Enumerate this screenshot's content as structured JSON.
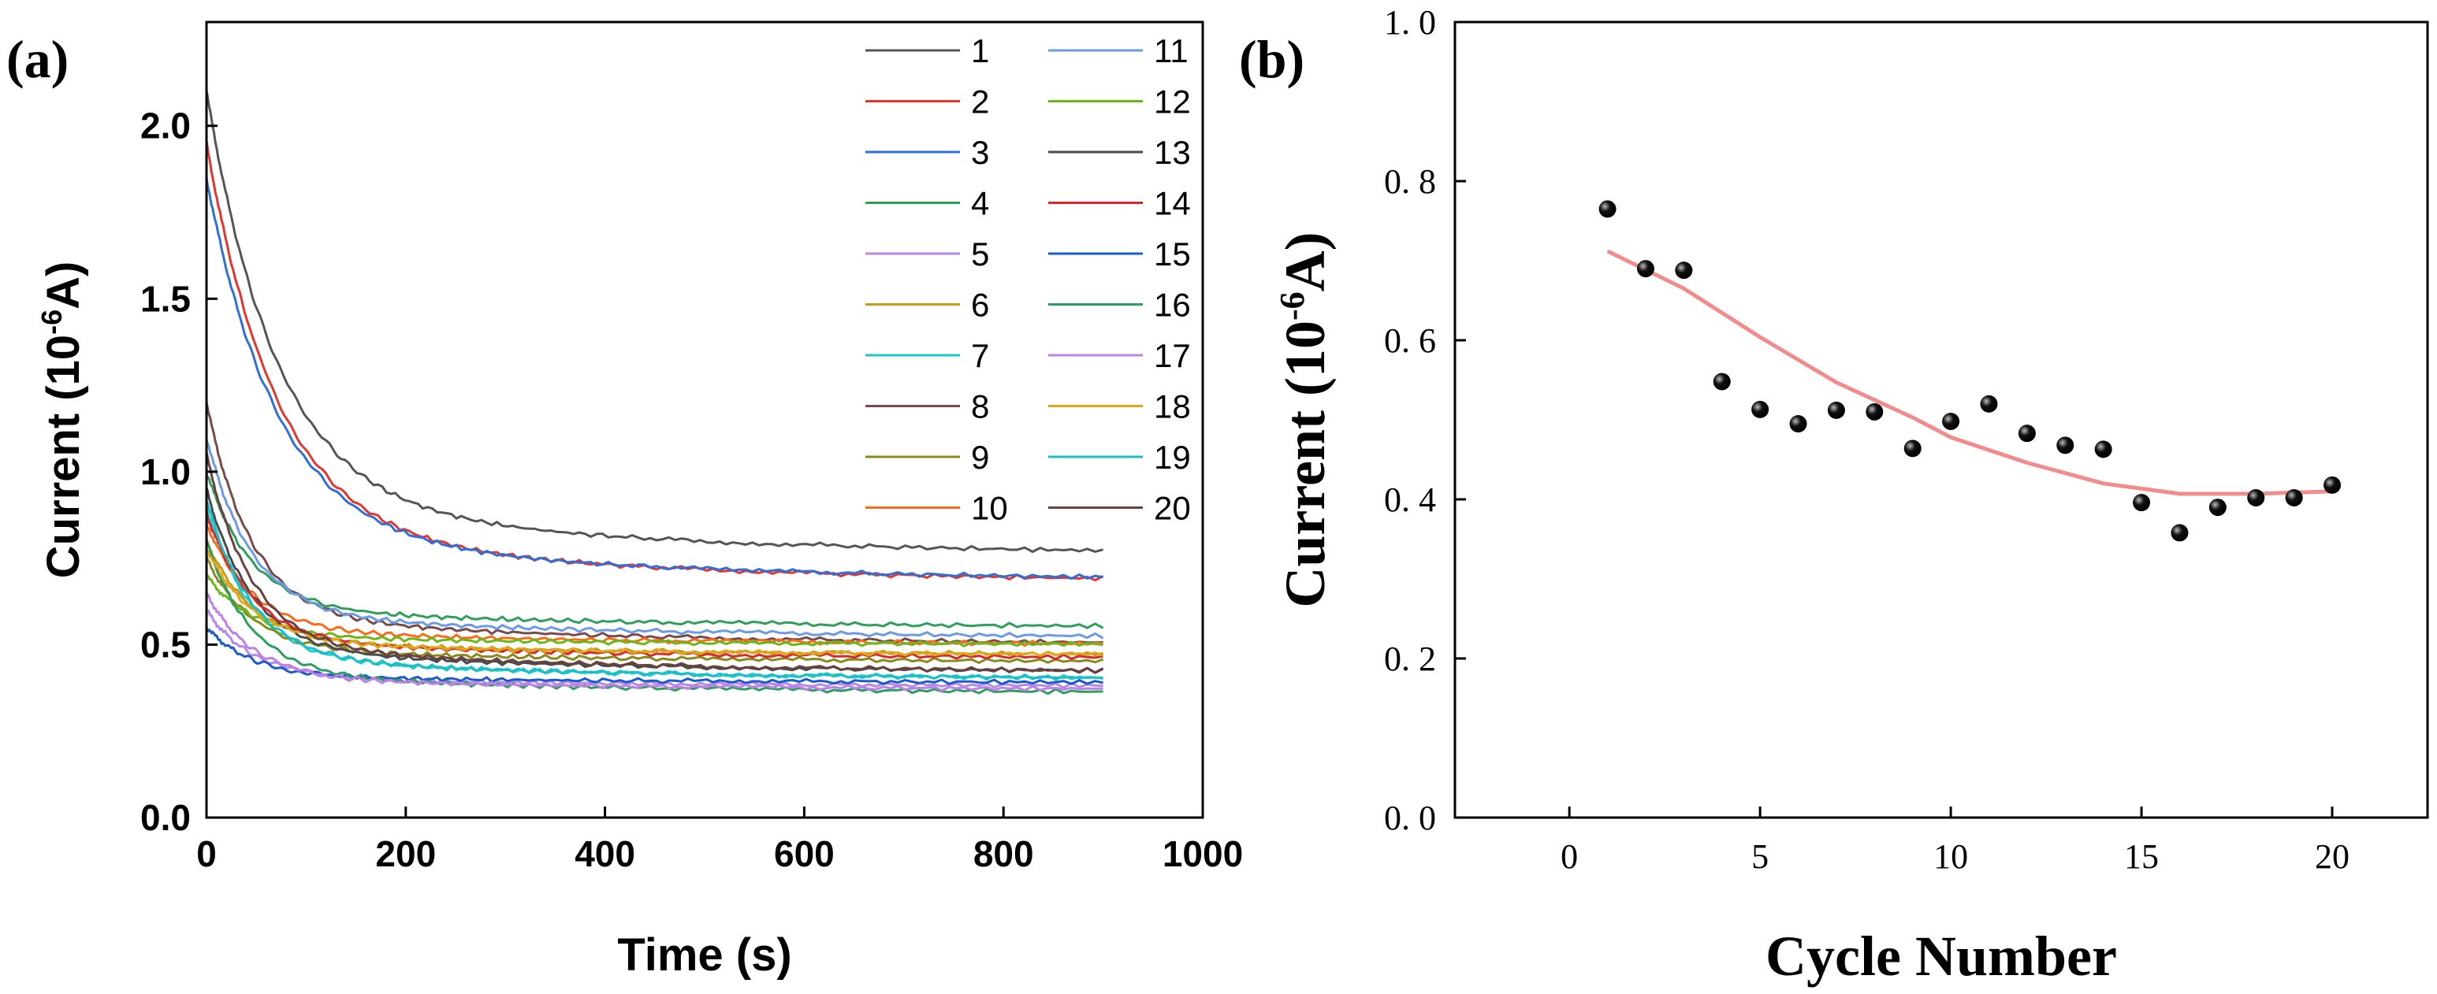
{
  "panel_a_label": "(a)",
  "panel_b_label": "(b)",
  "chart_data": [
    {
      "type": "line",
      "xlabel": "Time (s)",
      "ylabel_parts": [
        "Current (10",
        "-6",
        "A)"
      ],
      "xlim": [
        0,
        1000
      ],
      "ylim": [
        0.0,
        2.3
      ],
      "xticks": [
        0,
        200,
        400,
        600,
        800,
        1000
      ],
      "xtick_labels": [
        "0",
        "200",
        "400",
        "600",
        "800",
        "1000"
      ],
      "yticks": [
        0.0,
        0.5,
        1.0,
        1.5,
        2.0
      ],
      "ytick_labels": [
        "0.0",
        "0.5",
        "1.0",
        "1.5",
        "2.0"
      ],
      "legend_position": "top-right",
      "series": [
        {
          "name": "1",
          "color": "#555555",
          "start": 2.1,
          "end": 0.76
        },
        {
          "name": "2",
          "color": "#e8342c",
          "start": 1.95,
          "end": 0.68
        },
        {
          "name": "3",
          "color": "#2e6fd8",
          "start": 1.85,
          "end": 0.685
        },
        {
          "name": "4",
          "color": "#2ea05a",
          "start": 1.0,
          "end": 0.55
        },
        {
          "name": "5",
          "color": "#b58ae6",
          "start": 0.6,
          "end": 0.38
        },
        {
          "name": "6",
          "color": "#c99a18",
          "start": 0.8,
          "end": 0.47
        },
        {
          "name": "7",
          "color": "#1ec9c9",
          "start": 0.9,
          "end": 0.4
        },
        {
          "name": "8",
          "color": "#7a4a4a",
          "start": 1.2,
          "end": 0.5
        },
        {
          "name": "9",
          "color": "#8a8a1a",
          "start": 0.75,
          "end": 0.45
        },
        {
          "name": "10",
          "color": "#ff6a1a",
          "start": 0.85,
          "end": 0.5
        },
        {
          "name": "11",
          "color": "#6a9ae8",
          "start": 1.1,
          "end": 0.52
        },
        {
          "name": "12",
          "color": "#6ab818",
          "start": 0.7,
          "end": 0.5
        },
        {
          "name": "13",
          "color": "#4a4a4a",
          "start": 0.95,
          "end": 0.42
        },
        {
          "name": "14",
          "color": "#d82a2a",
          "start": 0.88,
          "end": 0.46
        },
        {
          "name": "15",
          "color": "#1a5ad0",
          "start": 0.55,
          "end": 0.39
        },
        {
          "name": "16",
          "color": "#2aa060",
          "start": 0.8,
          "end": 0.36
        },
        {
          "name": "17",
          "color": "#c080e8",
          "start": 0.65,
          "end": 0.37
        },
        {
          "name": "18",
          "color": "#e0a818",
          "start": 0.78,
          "end": 0.47
        },
        {
          "name": "19",
          "color": "#18c0c8",
          "start": 0.92,
          "end": 0.4
        },
        {
          "name": "20",
          "color": "#6a4040",
          "start": 1.05,
          "end": 0.42
        }
      ]
    },
    {
      "type": "scatter",
      "xlabel": "Cycle Number",
      "ylabel_parts": [
        "Current (10",
        "-6",
        "A)"
      ],
      "xlim": [
        -3,
        22.5
      ],
      "ylim": [
        0.0,
        1.0
      ],
      "xticks": [
        0,
        5,
        10,
        15,
        20
      ],
      "xtick_labels": [
        "0",
        "5",
        "10",
        "15",
        "20"
      ],
      "yticks": [
        0.0,
        0.2,
        0.4,
        0.6,
        0.8,
        1.0
      ],
      "ytick_labels": [
        "0. 0",
        "0. 2",
        "0. 4",
        "0. 6",
        "0. 8",
        "1. 0"
      ],
      "x": [
        1,
        2,
        3,
        4,
        5,
        6,
        7,
        8,
        9,
        10,
        11,
        12,
        13,
        14,
        15,
        16,
        17,
        18,
        19,
        20
      ],
      "y": [
        0.765,
        0.69,
        0.688,
        0.548,
        0.513,
        0.495,
        0.512,
        0.51,
        0.464,
        0.498,
        0.52,
        0.483,
        0.468,
        0.463,
        0.396,
        0.358,
        0.39,
        0.402,
        0.402,
        0.418
      ],
      "point_color": "#111111",
      "fit": {
        "color": "#f28b8b",
        "x": [
          1,
          3,
          5,
          7,
          9,
          10,
          12,
          14,
          16,
          18,
          20
        ],
        "y": [
          0.712,
          0.665,
          0.604,
          0.547,
          0.503,
          0.478,
          0.446,
          0.42,
          0.407,
          0.407,
          0.41
        ]
      }
    }
  ]
}
